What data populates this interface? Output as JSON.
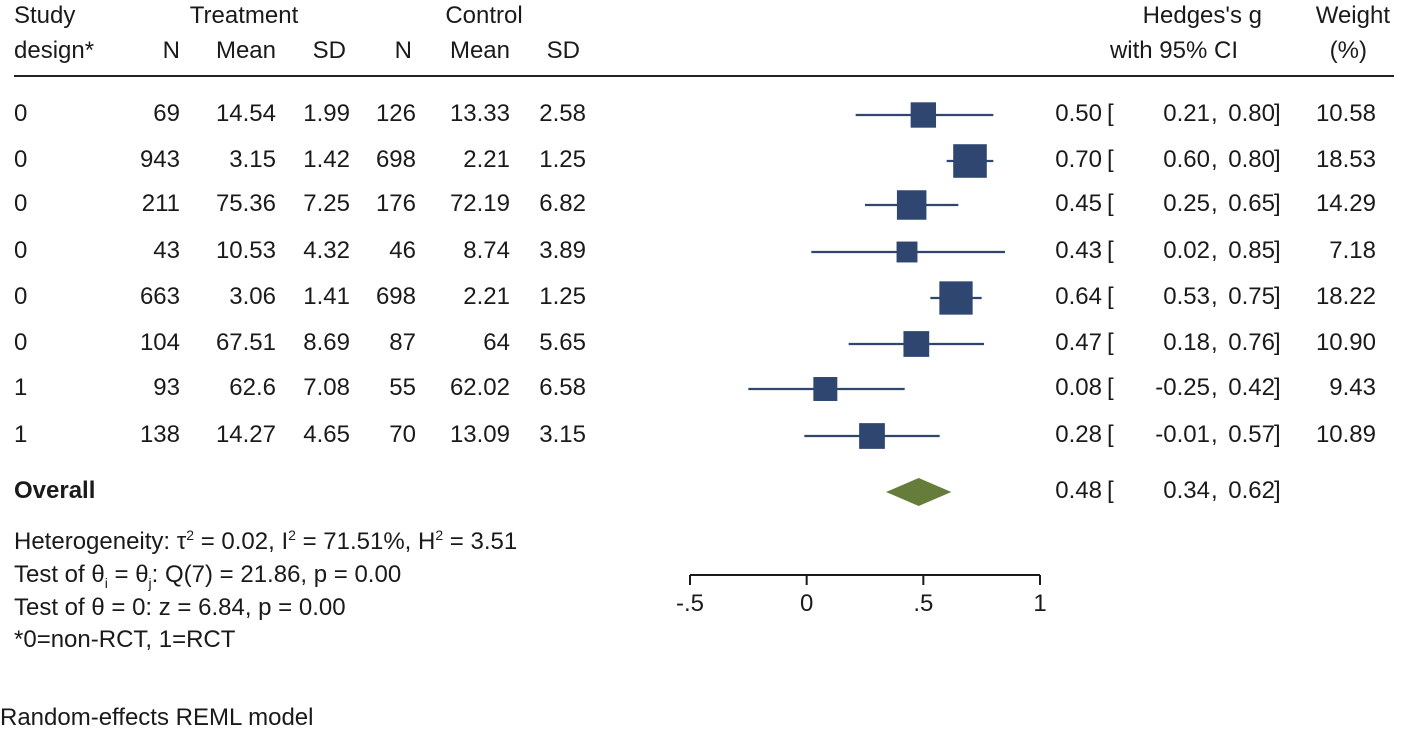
{
  "headers": {
    "study_design_1": "Study",
    "study_design_2": "design*",
    "treatment": "Treatment",
    "control": "Control",
    "n": "N",
    "mean": "Mean",
    "sd": "SD",
    "effect_1": "Hedges's g",
    "effect_2": "with 95% CI",
    "weight_1": "Weight",
    "weight_2": "(%)"
  },
  "rows": [
    {
      "design": "0",
      "t_n": "69",
      "t_mean": "14.54",
      "t_sd": "1.99",
      "c_n": "126",
      "c_mean": "13.33",
      "c_sd": "2.58",
      "g": "0.50",
      "lo": "0.21",
      "hi": "0.80",
      "weight": "10.58"
    },
    {
      "design": "0",
      "t_n": "943",
      "t_mean": "3.15",
      "t_sd": "1.42",
      "c_n": "698",
      "c_mean": "2.21",
      "c_sd": "1.25",
      "g": "0.70",
      "lo": "0.60",
      "hi": "0.80",
      "weight": "18.53"
    },
    {
      "design": "0",
      "t_n": "211",
      "t_mean": "75.36",
      "t_sd": "7.25",
      "c_n": "176",
      "c_mean": "72.19",
      "c_sd": "6.82",
      "g": "0.45",
      "lo": "0.25",
      "hi": "0.65",
      "weight": "14.29"
    },
    {
      "design": "0",
      "t_n": "43",
      "t_mean": "10.53",
      "t_sd": "4.32",
      "c_n": "46",
      "c_mean": "8.74",
      "c_sd": "3.89",
      "g": "0.43",
      "lo": "0.02",
      "hi": "0.85",
      "weight": "7.18"
    },
    {
      "design": "0",
      "t_n": "663",
      "t_mean": "3.06",
      "t_sd": "1.41",
      "c_n": "698",
      "c_mean": "2.21",
      "c_sd": "1.25",
      "g": "0.64",
      "lo": "0.53",
      "hi": "0.75",
      "weight": "18.22"
    },
    {
      "design": "0",
      "t_n": "104",
      "t_mean": "67.51",
      "t_sd": "8.69",
      "c_n": "87",
      "c_mean": "64",
      "c_sd": "5.65",
      "g": "0.47",
      "lo": "0.18",
      "hi": "0.76",
      "weight": "10.90"
    },
    {
      "design": "1",
      "t_n": "93",
      "t_mean": "62.6",
      "t_sd": "7.08",
      "c_n": "55",
      "c_mean": "62.02",
      "c_sd": "6.58",
      "g": "0.08",
      "lo": "-0.25",
      "hi": "0.42",
      "weight": "9.43"
    },
    {
      "design": "1",
      "t_n": "138",
      "t_mean": "14.27",
      "t_sd": "4.65",
      "c_n": "70",
      "c_mean": "13.09",
      "c_sd": "3.15",
      "g": "0.28",
      "lo": "-0.01",
      "hi": "0.57",
      "weight": "10.89"
    }
  ],
  "overall": {
    "label": "Overall",
    "g": "0.48",
    "lo": "0.34",
    "hi": "0.62"
  },
  "footnotes": {
    "het_prefix": "Heterogeneity: τ",
    "het_sup1": "2",
    "het_mid1": " = 0.02, I",
    "het_sup2": "2",
    "het_mid2": " = 71.51%, H",
    "het_sup3": "2",
    "het_end": " = 3.51",
    "test1_prefix": "Test of θ",
    "test1_sub1": "i",
    "test1_mid": " = θ",
    "test1_sub2": "j",
    "test1_end": ": Q(7) = 21.86, p = 0.00",
    "test2": "Test of θ = 0: z = 6.84, p = 0.00",
    "design_key": "*0=non-RCT, 1=RCT",
    "model": "Random-effects REML model"
  },
  "chart_data": {
    "type": "forest",
    "xlim": [
      -0.5,
      1
    ],
    "x_ticks": [
      -0.5,
      0,
      0.5,
      1
    ],
    "x_tick_labels": [
      "-.5",
      "0",
      ".5",
      "1"
    ],
    "points": [
      {
        "g": 0.5,
        "lo": 0.21,
        "hi": 0.8,
        "weight": 10.58
      },
      {
        "g": 0.7,
        "lo": 0.6,
        "hi": 0.8,
        "weight": 18.53
      },
      {
        "g": 0.45,
        "lo": 0.25,
        "hi": 0.65,
        "weight": 14.29
      },
      {
        "g": 0.43,
        "lo": 0.02,
        "hi": 0.85,
        "weight": 7.18
      },
      {
        "g": 0.64,
        "lo": 0.53,
        "hi": 0.75,
        "weight": 18.22
      },
      {
        "g": 0.47,
        "lo": 0.18,
        "hi": 0.76,
        "weight": 10.9
      },
      {
        "g": 0.08,
        "lo": -0.25,
        "hi": 0.42,
        "weight": 9.43
      },
      {
        "g": 0.28,
        "lo": -0.01,
        "hi": 0.57,
        "weight": 10.89
      }
    ],
    "overall": {
      "g": 0.48,
      "lo": 0.34,
      "hi": 0.62
    },
    "colors": {
      "marker": "#2e4670",
      "diamond": "#667c3a",
      "line": "#2e4670",
      "axis": "#1a1a1a"
    }
  }
}
